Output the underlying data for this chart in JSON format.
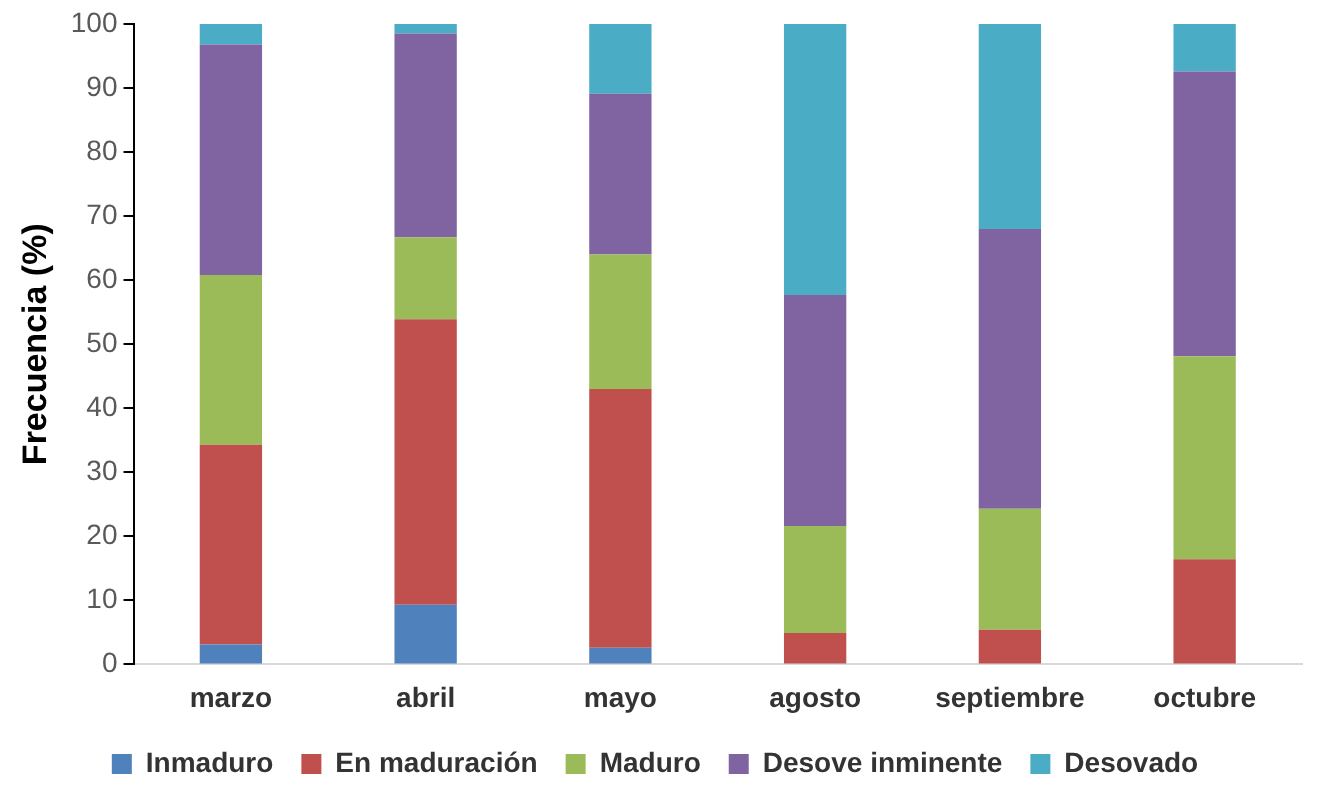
{
  "chart_data": {
    "type": "bar",
    "stacked": true,
    "ylabel": "Frecuencia (%)",
    "categories": [
      "marzo",
      "abril",
      "mayo",
      "agosto",
      "septiembre",
      "octubre"
    ],
    "ylim": [
      0,
      100
    ],
    "yticks": [
      0,
      10,
      20,
      30,
      40,
      50,
      60,
      70,
      80,
      90,
      100
    ],
    "grid": false,
    "legend": "bottom",
    "series": [
      {
        "name": "Inmaduro",
        "color": "#4f81bd",
        "values": [
          3.1,
          9.3,
          2.6,
          0,
          0,
          0
        ]
      },
      {
        "name": "En maduración",
        "color": "#c0504d",
        "values": [
          31.2,
          44.6,
          40.4,
          4.9,
          5.4,
          16.4
        ]
      },
      {
        "name": "Maduro",
        "color": "#9bbb59",
        "values": [
          26.5,
          12.8,
          21,
          16.7,
          18.9,
          31.7
        ]
      },
      {
        "name": "Desove inminente",
        "color": "#8064a2",
        "values": [
          36,
          31.8,
          25.1,
          36.1,
          43.7,
          44.5
        ]
      },
      {
        "name": "Desovado",
        "color": "#4bacc6",
        "values": [
          3.2,
          1.5,
          10.9,
          42.3,
          32,
          7.4
        ]
      }
    ]
  }
}
